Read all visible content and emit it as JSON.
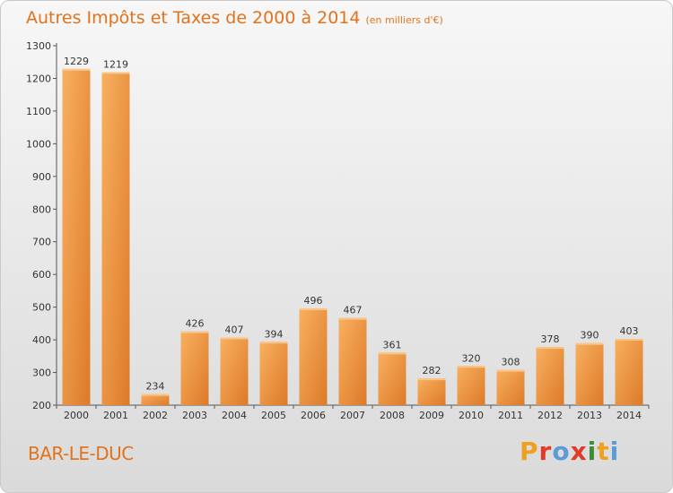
{
  "title": "Autres Impôts et Taxes de 2000 à 2014",
  "subtitle": "(en milliers d'€)",
  "place": "BAR-LE-DUC",
  "logo": "Proxiti",
  "colors": {
    "accent": "#e2731c",
    "bar_light": "#f6a854",
    "bar_dark": "#e07f2c"
  },
  "chart_data": {
    "type": "bar",
    "title": "Autres Impôts et Taxes de 2000 à 2014",
    "subtitle": "(en milliers d'€)",
    "xlabel": "",
    "ylabel": "",
    "categories": [
      "2000",
      "2001",
      "2002",
      "2003",
      "2004",
      "2005",
      "2006",
      "2007",
      "2008",
      "2009",
      "2010",
      "2011",
      "2012",
      "2013",
      "2014"
    ],
    "values": [
      1229,
      1219,
      234,
      426,
      407,
      394,
      496,
      467,
      361,
      282,
      320,
      308,
      378,
      390,
      403
    ],
    "ylim": [
      200,
      1300
    ],
    "yticks": [
      200,
      300,
      400,
      500,
      600,
      700,
      800,
      900,
      1000,
      1100,
      1200,
      1300
    ],
    "grid": false,
    "legend": "none"
  }
}
